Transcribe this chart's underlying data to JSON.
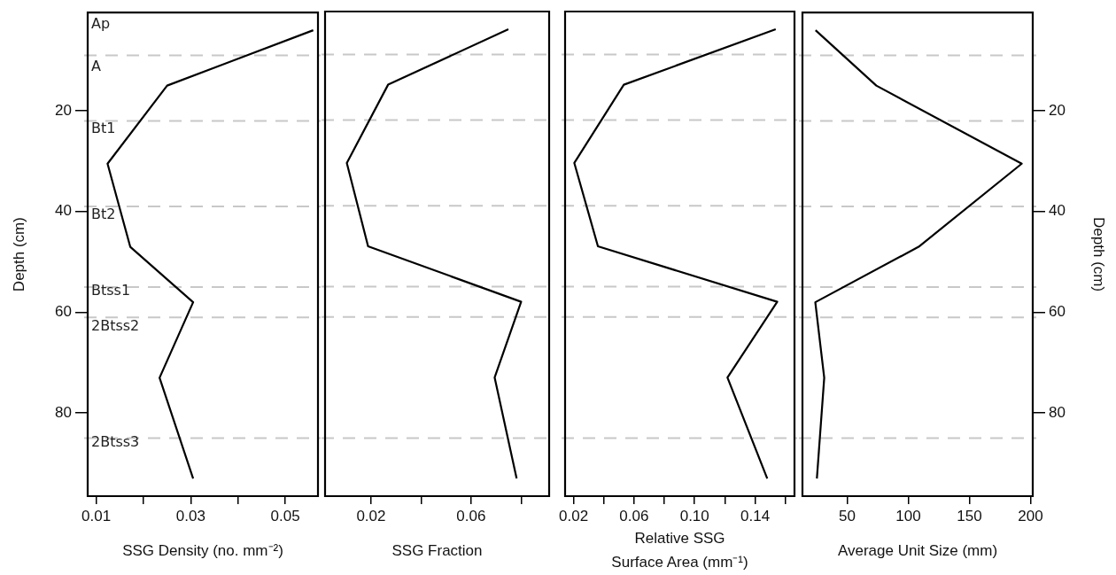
{
  "chart_data": [
    {
      "type": "line",
      "xlabel": "SSG Density (no. mm⁻²)",
      "ylabel": "Depth (cm)",
      "xlim": [
        0.0082,
        0.0569
      ],
      "xticks": [
        0.01,
        {
          "value": 0.02,
          "label": null
        },
        0.03,
        {
          "value": 0.04,
          "label": null
        },
        0.05
      ],
      "ylim": [
        96.5,
        0.5
      ],
      "yticks": [
        20,
        40,
        60,
        80
      ],
      "marker": "none",
      "line_style": "solid",
      "series": [
        {
          "color": "#000000",
          "x": [
            0.0559,
            0.025,
            0.0124,
            0.0172,
            0.0305,
            0.0234,
            0.0305
          ],
          "values": [
            4,
            15,
            30.5,
            47,
            58,
            73,
            93
          ]
        }
      ],
      "ref_lines": [
        {
          "axis": "y",
          "value": 9,
          "color": "#c8c8c8",
          "line_style": "dashed"
        },
        {
          "axis": "y",
          "value": 22,
          "color": "#c8c8c8",
          "line_style": "dashed"
        },
        {
          "axis": "y",
          "value": 39,
          "color": "#c8c8c8",
          "line_style": "dashed"
        },
        {
          "axis": "y",
          "value": 55,
          "color": "#c8c8c8",
          "line_style": "dashed"
        },
        {
          "axis": "y",
          "value": 61,
          "color": "#c8c8c8",
          "line_style": "dashed"
        },
        {
          "axis": "y",
          "value": 85,
          "color": "#c8c8c8",
          "line_style": "dashed"
        }
      ],
      "annotations": [
        "Ap",
        "A",
        "Bt1",
        "Bt2",
        "Btss1",
        "2Btss2",
        "2Btss3"
      ]
    },
    {
      "type": "line",
      "xlabel": "SSG Fraction",
      "xlim": [
        0.0016,
        0.0912
      ],
      "xticks": [
        0.02,
        {
          "value": 0.04,
          "label": null
        },
        0.06,
        {
          "value": 0.08,
          "label": null
        }
      ],
      "ylim": [
        96.5,
        0.5
      ],
      "yticks": [
        20,
        40,
        60,
        80
      ],
      "tick_labels": "x",
      "marker": "none",
      "line_style": "solid",
      "series": [
        {
          "color": "#000000",
          "x": [
            0.0749,
            0.0268,
            0.0103,
            0.0188,
            0.08,
            0.0694,
            0.0782
          ],
          "values": [
            4,
            15,
            30.5,
            47,
            58,
            73,
            93
          ]
        }
      ],
      "ref_lines": [
        {
          "axis": "y",
          "value": 9,
          "color": "#c8c8c8",
          "line_style": "dashed"
        },
        {
          "axis": "y",
          "value": 22,
          "color": "#c8c8c8",
          "line_style": "dashed"
        },
        {
          "axis": "y",
          "value": 39,
          "color": "#c8c8c8",
          "line_style": "dashed"
        },
        {
          "axis": "y",
          "value": 55,
          "color": "#c8c8c8",
          "line_style": "dashed"
        },
        {
          "axis": "y",
          "value": 61,
          "color": "#c8c8c8",
          "line_style": "dashed"
        },
        {
          "axis": "y",
          "value": 85,
          "color": "#c8c8c8",
          "line_style": "dashed"
        }
      ]
    },
    {
      "type": "line",
      "xlabel": "Relative SSG\nSurface Area (mm⁻¹)",
      "xlim": [
        0.0144,
        0.166
      ],
      "xticks": [
        0.02,
        {
          "value": 0.04,
          "label": null
        },
        0.06,
        {
          "value": 0.08,
          "label": null
        },
        {
          "value": 0.1,
          "label": "0.10"
        },
        {
          "value": 0.12,
          "label": null
        },
        0.14,
        {
          "value": 0.16,
          "label": null
        }
      ],
      "ylim": [
        96.5,
        0.5
      ],
      "yticks": [
        20,
        40,
        60,
        80
      ],
      "tick_labels": "x",
      "marker": "none",
      "line_style": "solid",
      "series": [
        {
          "color": "#000000",
          "x": [
            0.1536,
            0.0532,
            0.0205,
            0.0361,
            0.1546,
            0.1217,
            0.148
          ],
          "values": [
            4,
            15,
            30.5,
            47,
            58,
            73,
            93
          ]
        }
      ],
      "ref_lines": [
        {
          "axis": "y",
          "value": 9,
          "color": "#c8c8c8",
          "line_style": "dashed"
        },
        {
          "axis": "y",
          "value": 22,
          "color": "#c8c8c8",
          "line_style": "dashed"
        },
        {
          "axis": "y",
          "value": 39,
          "color": "#c8c8c8",
          "line_style": "dashed"
        },
        {
          "axis": "y",
          "value": 55,
          "color": "#c8c8c8",
          "line_style": "dashed"
        },
        {
          "axis": "y",
          "value": 61,
          "color": "#c8c8c8",
          "line_style": "dashed"
        },
        {
          "axis": "y",
          "value": 85,
          "color": "#c8c8c8",
          "line_style": "dashed"
        }
      ]
    },
    {
      "type": "line",
      "xlabel": "Average Unit Size (mm)",
      "y2label": "Depth (cm)",
      "xlim": [
        13.5,
        201.8
      ],
      "xticks": [
        50,
        100,
        150,
        200
      ],
      "y2lim": [
        96.5,
        0.5
      ],
      "y2ticks": [
        20,
        40,
        60,
        80
      ],
      "marker": "none",
      "line_style": "solid",
      "series": [
        {
          "color": "#000000",
          "axis": "y2",
          "x": [
            24.2,
            73.9,
            192.8,
            108.5,
            24,
            31.3,
            25.3
          ],
          "values": [
            4,
            15,
            30.5,
            47,
            58,
            73,
            93
          ]
        }
      ],
      "ref_lines": [
        {
          "axis": "y2",
          "value": 9,
          "color": "#c8c8c8",
          "line_style": "dashed"
        },
        {
          "axis": "y2",
          "value": 22,
          "color": "#c8c8c8",
          "line_style": "dashed"
        },
        {
          "axis": "y2",
          "value": 39,
          "color": "#c8c8c8",
          "line_style": "dashed"
        },
        {
          "axis": "y2",
          "value": 55,
          "color": "#c8c8c8",
          "line_style": "dashed"
        },
        {
          "axis": "y2",
          "value": 61,
          "color": "#c8c8c8",
          "line_style": "dashed"
        },
        {
          "axis": "y2",
          "value": 85,
          "color": "#c8c8c8",
          "line_style": "dashed"
        }
      ]
    }
  ]
}
